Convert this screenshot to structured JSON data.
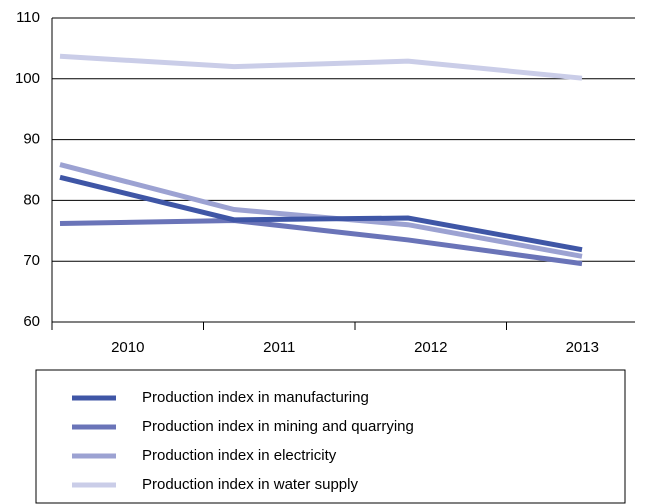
{
  "chart_data": {
    "type": "line",
    "categories": [
      "2010",
      "2011",
      "2012",
      "2013"
    ],
    "series": [
      {
        "name": "Production index in manufacturing",
        "color": "#3f56a6",
        "values": [
          83.8,
          76.8,
          77.1,
          71.9
        ]
      },
      {
        "name": "Production index in mining and quarrying",
        "color": "#6a74b8",
        "values": [
          76.2,
          76.7,
          73.5,
          69.6
        ]
      },
      {
        "name": "Production index in electricity",
        "color": "#9ca2d2",
        "values": [
          85.9,
          78.5,
          76.0,
          70.8
        ]
      },
      {
        "name": "Production index in water supply",
        "color": "#cacde8",
        "values": [
          103.7,
          102.0,
          102.9,
          100.1
        ]
      }
    ],
    "ylim": [
      60,
      110
    ],
    "yticks": [
      60,
      70,
      80,
      90,
      100,
      110
    ],
    "grid": true
  }
}
